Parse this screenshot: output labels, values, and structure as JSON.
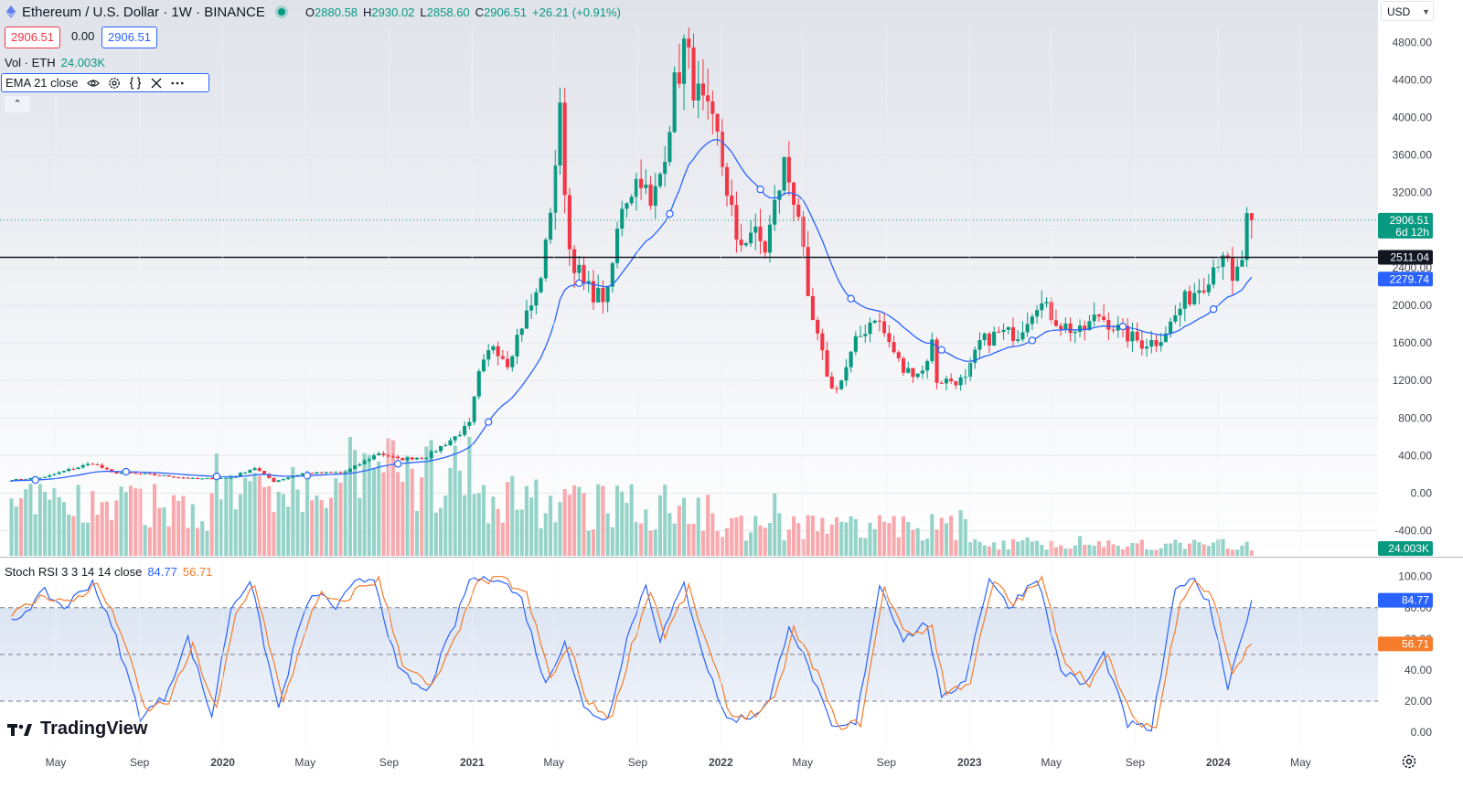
{
  "header": {
    "title": "Ethereum / U.S. Dollar · 1W · BINANCE",
    "open_label": "O",
    "open": "2880.58",
    "high_label": "H",
    "high": "2930.02",
    "low_label": "L",
    "low": "2858.60",
    "close_label": "C",
    "close": "2906.51",
    "change": "+26.21 (+0.91%)"
  },
  "trade": {
    "sell": "2906.51",
    "spread": "0.00",
    "buy": "2906.51"
  },
  "volume_legend": {
    "label": "Vol · ETH",
    "value": "24.003K"
  },
  "ema_legend": {
    "label": "EMA 21 close"
  },
  "stoch_legend": {
    "label": "Stoch RSI 3 3 14 14 close",
    "k": "84.77",
    "d": "56.71"
  },
  "currency": "USD",
  "branding": "TradingView",
  "colors": {
    "up": "#089981",
    "down": "#f23645",
    "ema": "#2962ff",
    "k": "#2962ff",
    "d": "#f57c2b",
    "hline": "#131722"
  },
  "chart_data": [
    {
      "type": "candlestick",
      "title": "Ethereum / U.S. Dollar · 1W · BINANCE",
      "y_ticks": [
        "-400.00",
        "0.00",
        "400.00",
        "800.00",
        "1200.00",
        "1600.00",
        "2000.00",
        "2400.00",
        "2800.00",
        "3200.00",
        "3600.00",
        "4000.00",
        "4400.00",
        "4800.00"
      ],
      "y_range": [
        -660,
        5020
      ],
      "x_ticks": [
        {
          "label": "May",
          "date": "2019-05"
        },
        {
          "label": "Sep",
          "date": "2019-09"
        },
        {
          "label": "2020",
          "date": "2020-01"
        },
        {
          "label": "May",
          "date": "2020-05"
        },
        {
          "label": "Sep",
          "date": "2020-09"
        },
        {
          "label": "2021",
          "date": "2021-01"
        },
        {
          "label": "May",
          "date": "2021-05"
        },
        {
          "label": "Sep",
          "date": "2021-09"
        },
        {
          "label": "2022",
          "date": "2022-01"
        },
        {
          "label": "May",
          "date": "2022-05"
        },
        {
          "label": "Sep",
          "date": "2022-09"
        },
        {
          "label": "2023",
          "date": "2023-01"
        },
        {
          "label": "May",
          "date": "2023-05"
        },
        {
          "label": "Sep",
          "date": "2023-09"
        },
        {
          "label": "2024",
          "date": "2024-01"
        },
        {
          "label": "May",
          "date": "2024-05"
        }
      ],
      "close_anchors": [
        [
          "2019-02-25",
          140
        ],
        [
          "2019-04-15",
          170
        ],
        [
          "2019-05-20",
          250
        ],
        [
          "2019-06-24",
          320
        ],
        [
          "2019-07-22",
          220
        ],
        [
          "2019-09-16",
          200
        ],
        [
          "2019-11-25",
          150
        ],
        [
          "2020-01-13",
          165
        ],
        [
          "2020-02-17",
          270
        ],
        [
          "2020-03-16",
          125
        ],
        [
          "2020-04-27",
          210
        ],
        [
          "2020-06-29",
          225
        ],
        [
          "2020-07-27",
          340
        ],
        [
          "2020-08-17",
          430
        ],
        [
          "2020-09-14",
          360
        ],
        [
          "2020-10-26",
          390
        ],
        [
          "2020-12-07",
          600
        ],
        [
          "2020-12-28",
          730
        ],
        [
          "2021-01-11",
          1250
        ],
        [
          "2021-02-01",
          1600
        ],
        [
          "2021-02-22",
          1400
        ],
        [
          "2021-03-15",
          1800
        ],
        [
          "2021-04-05",
          2100
        ],
        [
          "2021-04-19",
          2600
        ],
        [
          "2021-05-10",
          4000
        ],
        [
          "2021-05-24",
          2600
        ],
        [
          "2021-06-14",
          2200
        ],
        [
          "2021-07-05",
          2100
        ],
        [
          "2021-07-19",
          2100
        ],
        [
          "2021-08-09",
          3100
        ],
        [
          "2021-09-06",
          3400
        ],
        [
          "2021-09-20",
          3000
        ],
        [
          "2021-10-04",
          3400
        ],
        [
          "2021-10-25",
          4300
        ],
        [
          "2021-11-08",
          4750
        ],
        [
          "2021-11-29",
          4200
        ],
        [
          "2021-12-27",
          3750
        ],
        [
          "2022-01-17",
          3000
        ],
        [
          "2022-01-24",
          2600
        ],
        [
          "2022-02-14",
          2800
        ],
        [
          "2022-03-07",
          2600
        ],
        [
          "2022-04-04",
          3500
        ],
        [
          "2022-04-25",
          3000
        ],
        [
          "2022-05-09",
          2000
        ],
        [
          "2022-06-13",
          1100
        ],
        [
          "2022-06-27",
          1200
        ],
        [
          "2022-07-18",
          1600
        ],
        [
          "2022-08-15",
          1900
        ],
        [
          "2022-09-05",
          1600
        ],
        [
          "2022-09-26",
          1300
        ],
        [
          "2022-10-24",
          1300
        ],
        [
          "2022-11-07",
          1600
        ],
        [
          "2022-11-14",
          1200
        ],
        [
          "2022-12-26",
          1200
        ],
        [
          "2023-01-16",
          1600
        ],
        [
          "2023-02-13",
          1700
        ],
        [
          "2023-03-13",
          1700
        ],
        [
          "2023-04-10",
          2050
        ],
        [
          "2023-05-15",
          1800
        ],
        [
          "2023-06-12",
          1700
        ],
        [
          "2023-07-10",
          1900
        ],
        [
          "2023-08-14",
          1700
        ],
        [
          "2023-09-11",
          1600
        ],
        [
          "2023-10-02",
          1620
        ],
        [
          "2023-10-23",
          1800
        ],
        [
          "2023-11-13",
          2050
        ],
        [
          "2023-12-11",
          2250
        ],
        [
          "2024-01-08",
          2600
        ],
        [
          "2024-01-22",
          2200
        ],
        [
          "2024-02-05",
          2500
        ],
        [
          "2024-02-12",
          2880
        ],
        [
          "2024-02-19",
          2906.51
        ]
      ],
      "last_price": 2906.51,
      "last_price_countdown": "6d 12h",
      "horizontal_line": 2511.04,
      "horizontal_line_label": "2511.04",
      "ema": {
        "period": 21,
        "value": 2279.74,
        "label": "2279.74"
      },
      "volume": {
        "last": "24.003K"
      }
    },
    {
      "type": "line",
      "title": "Stoch RSI 3 3 14 14 close",
      "y_ticks": [
        "0.00",
        "20.00",
        "40.00",
        "60.00",
        "80.00",
        "100.00"
      ],
      "y_range": [
        -2,
        112
      ],
      "bands": [
        20,
        50,
        80
      ],
      "series": [
        {
          "name": "K",
          "last": 84.77,
          "label": "84.77",
          "anchors": [
            [
              "2019-02-25",
              70
            ],
            [
              "2019-04-15",
              90
            ],
            [
              "2019-05-13",
              80
            ],
            [
              "2019-06-24",
              97
            ],
            [
              "2019-07-29",
              60
            ],
            [
              "2019-09-02",
              10
            ],
            [
              "2019-10-07",
              22
            ],
            [
              "2019-11-11",
              60
            ],
            [
              "2019-12-16",
              10
            ],
            [
              "2020-01-13",
              80
            ],
            [
              "2020-02-10",
              98
            ],
            [
              "2020-03-23",
              15
            ],
            [
              "2020-04-27",
              75
            ],
            [
              "2020-05-18",
              90
            ],
            [
              "2020-06-15",
              80
            ],
            [
              "2020-07-13",
              95
            ],
            [
              "2020-08-10",
              100
            ],
            [
              "2020-09-14",
              40
            ],
            [
              "2020-10-26",
              25
            ],
            [
              "2020-12-07",
              70
            ],
            [
              "2020-12-28",
              98
            ],
            [
              "2021-02-08",
              100
            ],
            [
              "2021-03-15",
              85
            ],
            [
              "2021-04-19",
              30
            ],
            [
              "2021-05-17",
              60
            ],
            [
              "2021-06-14",
              15
            ],
            [
              "2021-07-19",
              8
            ],
            [
              "2021-08-16",
              60
            ],
            [
              "2021-09-13",
              95
            ],
            [
              "2021-10-04",
              60
            ],
            [
              "2021-11-08",
              95
            ],
            [
              "2021-12-13",
              40
            ],
            [
              "2022-01-10",
              8
            ],
            [
              "2022-02-14",
              10
            ],
            [
              "2022-03-14",
              20
            ],
            [
              "2022-04-11",
              70
            ],
            [
              "2022-05-16",
              35
            ],
            [
              "2022-06-13",
              2
            ],
            [
              "2022-07-18",
              5
            ],
            [
              "2022-08-22",
              95
            ],
            [
              "2022-09-26",
              60
            ],
            [
              "2022-10-31",
              70
            ],
            [
              "2022-11-21",
              20
            ],
            [
              "2022-12-26",
              35
            ],
            [
              "2023-01-30",
              100
            ],
            [
              "2023-02-27",
              80
            ],
            [
              "2023-04-10",
              100
            ],
            [
              "2023-05-15",
              40
            ],
            [
              "2023-06-19",
              30
            ],
            [
              "2023-07-17",
              50
            ],
            [
              "2023-08-21",
              5
            ],
            [
              "2023-09-25",
              2
            ],
            [
              "2023-10-30",
              90
            ],
            [
              "2023-11-20",
              100
            ],
            [
              "2023-12-18",
              85
            ],
            [
              "2024-01-15",
              30
            ],
            [
              "2024-02-19",
              84.77
            ]
          ]
        },
        {
          "name": "D",
          "last": 56.71,
          "label": "56.71",
          "anchors": [
            [
              "2019-02-25",
              75
            ],
            [
              "2019-04-15",
              88
            ],
            [
              "2019-05-20",
              83
            ],
            [
              "2019-07-01",
              95
            ],
            [
              "2019-08-05",
              65
            ],
            [
              "2019-09-09",
              14
            ],
            [
              "2019-10-14",
              20
            ],
            [
              "2019-11-18",
              55
            ],
            [
              "2019-12-23",
              14
            ],
            [
              "2020-01-20",
              75
            ],
            [
              "2020-02-17",
              96
            ],
            [
              "2020-03-30",
              18
            ],
            [
              "2020-05-04",
              70
            ],
            [
              "2020-05-25",
              88
            ],
            [
              "2020-06-22",
              82
            ],
            [
              "2020-07-20",
              93
            ],
            [
              "2020-08-17",
              98
            ],
            [
              "2020-09-21",
              45
            ],
            [
              "2020-11-02",
              28
            ],
            [
              "2020-12-14",
              65
            ],
            [
              "2021-01-04",
              95
            ],
            [
              "2021-02-15",
              99
            ],
            [
              "2021-03-22",
              88
            ],
            [
              "2021-04-26",
              35
            ],
            [
              "2021-05-24",
              55
            ],
            [
              "2021-06-21",
              18
            ],
            [
              "2021-07-26",
              10
            ],
            [
              "2021-08-23",
              55
            ],
            [
              "2021-09-20",
              92
            ],
            [
              "2021-10-11",
              62
            ],
            [
              "2021-11-15",
              92
            ],
            [
              "2021-12-20",
              45
            ],
            [
              "2022-01-17",
              10
            ],
            [
              "2022-02-21",
              12
            ],
            [
              "2022-03-21",
              20
            ],
            [
              "2022-04-18",
              66
            ],
            [
              "2022-05-23",
              38
            ],
            [
              "2022-06-20",
              4
            ],
            [
              "2022-07-25",
              6
            ],
            [
              "2022-08-29",
              92
            ],
            [
              "2022-10-03",
              62
            ],
            [
              "2022-11-07",
              68
            ],
            [
              "2022-11-28",
              25
            ],
            [
              "2023-01-02",
              33
            ],
            [
              "2023-02-06",
              97
            ],
            [
              "2023-03-06",
              82
            ],
            [
              "2023-04-17",
              98
            ],
            [
              "2023-05-22",
              45
            ],
            [
              "2023-06-26",
              32
            ],
            [
              "2023-07-24",
              48
            ],
            [
              "2023-08-28",
              8
            ],
            [
              "2023-10-02",
              3
            ],
            [
              "2023-11-06",
              85
            ],
            [
              "2023-11-27",
              98
            ],
            [
              "2023-12-25",
              86
            ],
            [
              "2024-01-22",
              38
            ],
            [
              "2024-02-19",
              56.71
            ]
          ]
        }
      ]
    }
  ]
}
